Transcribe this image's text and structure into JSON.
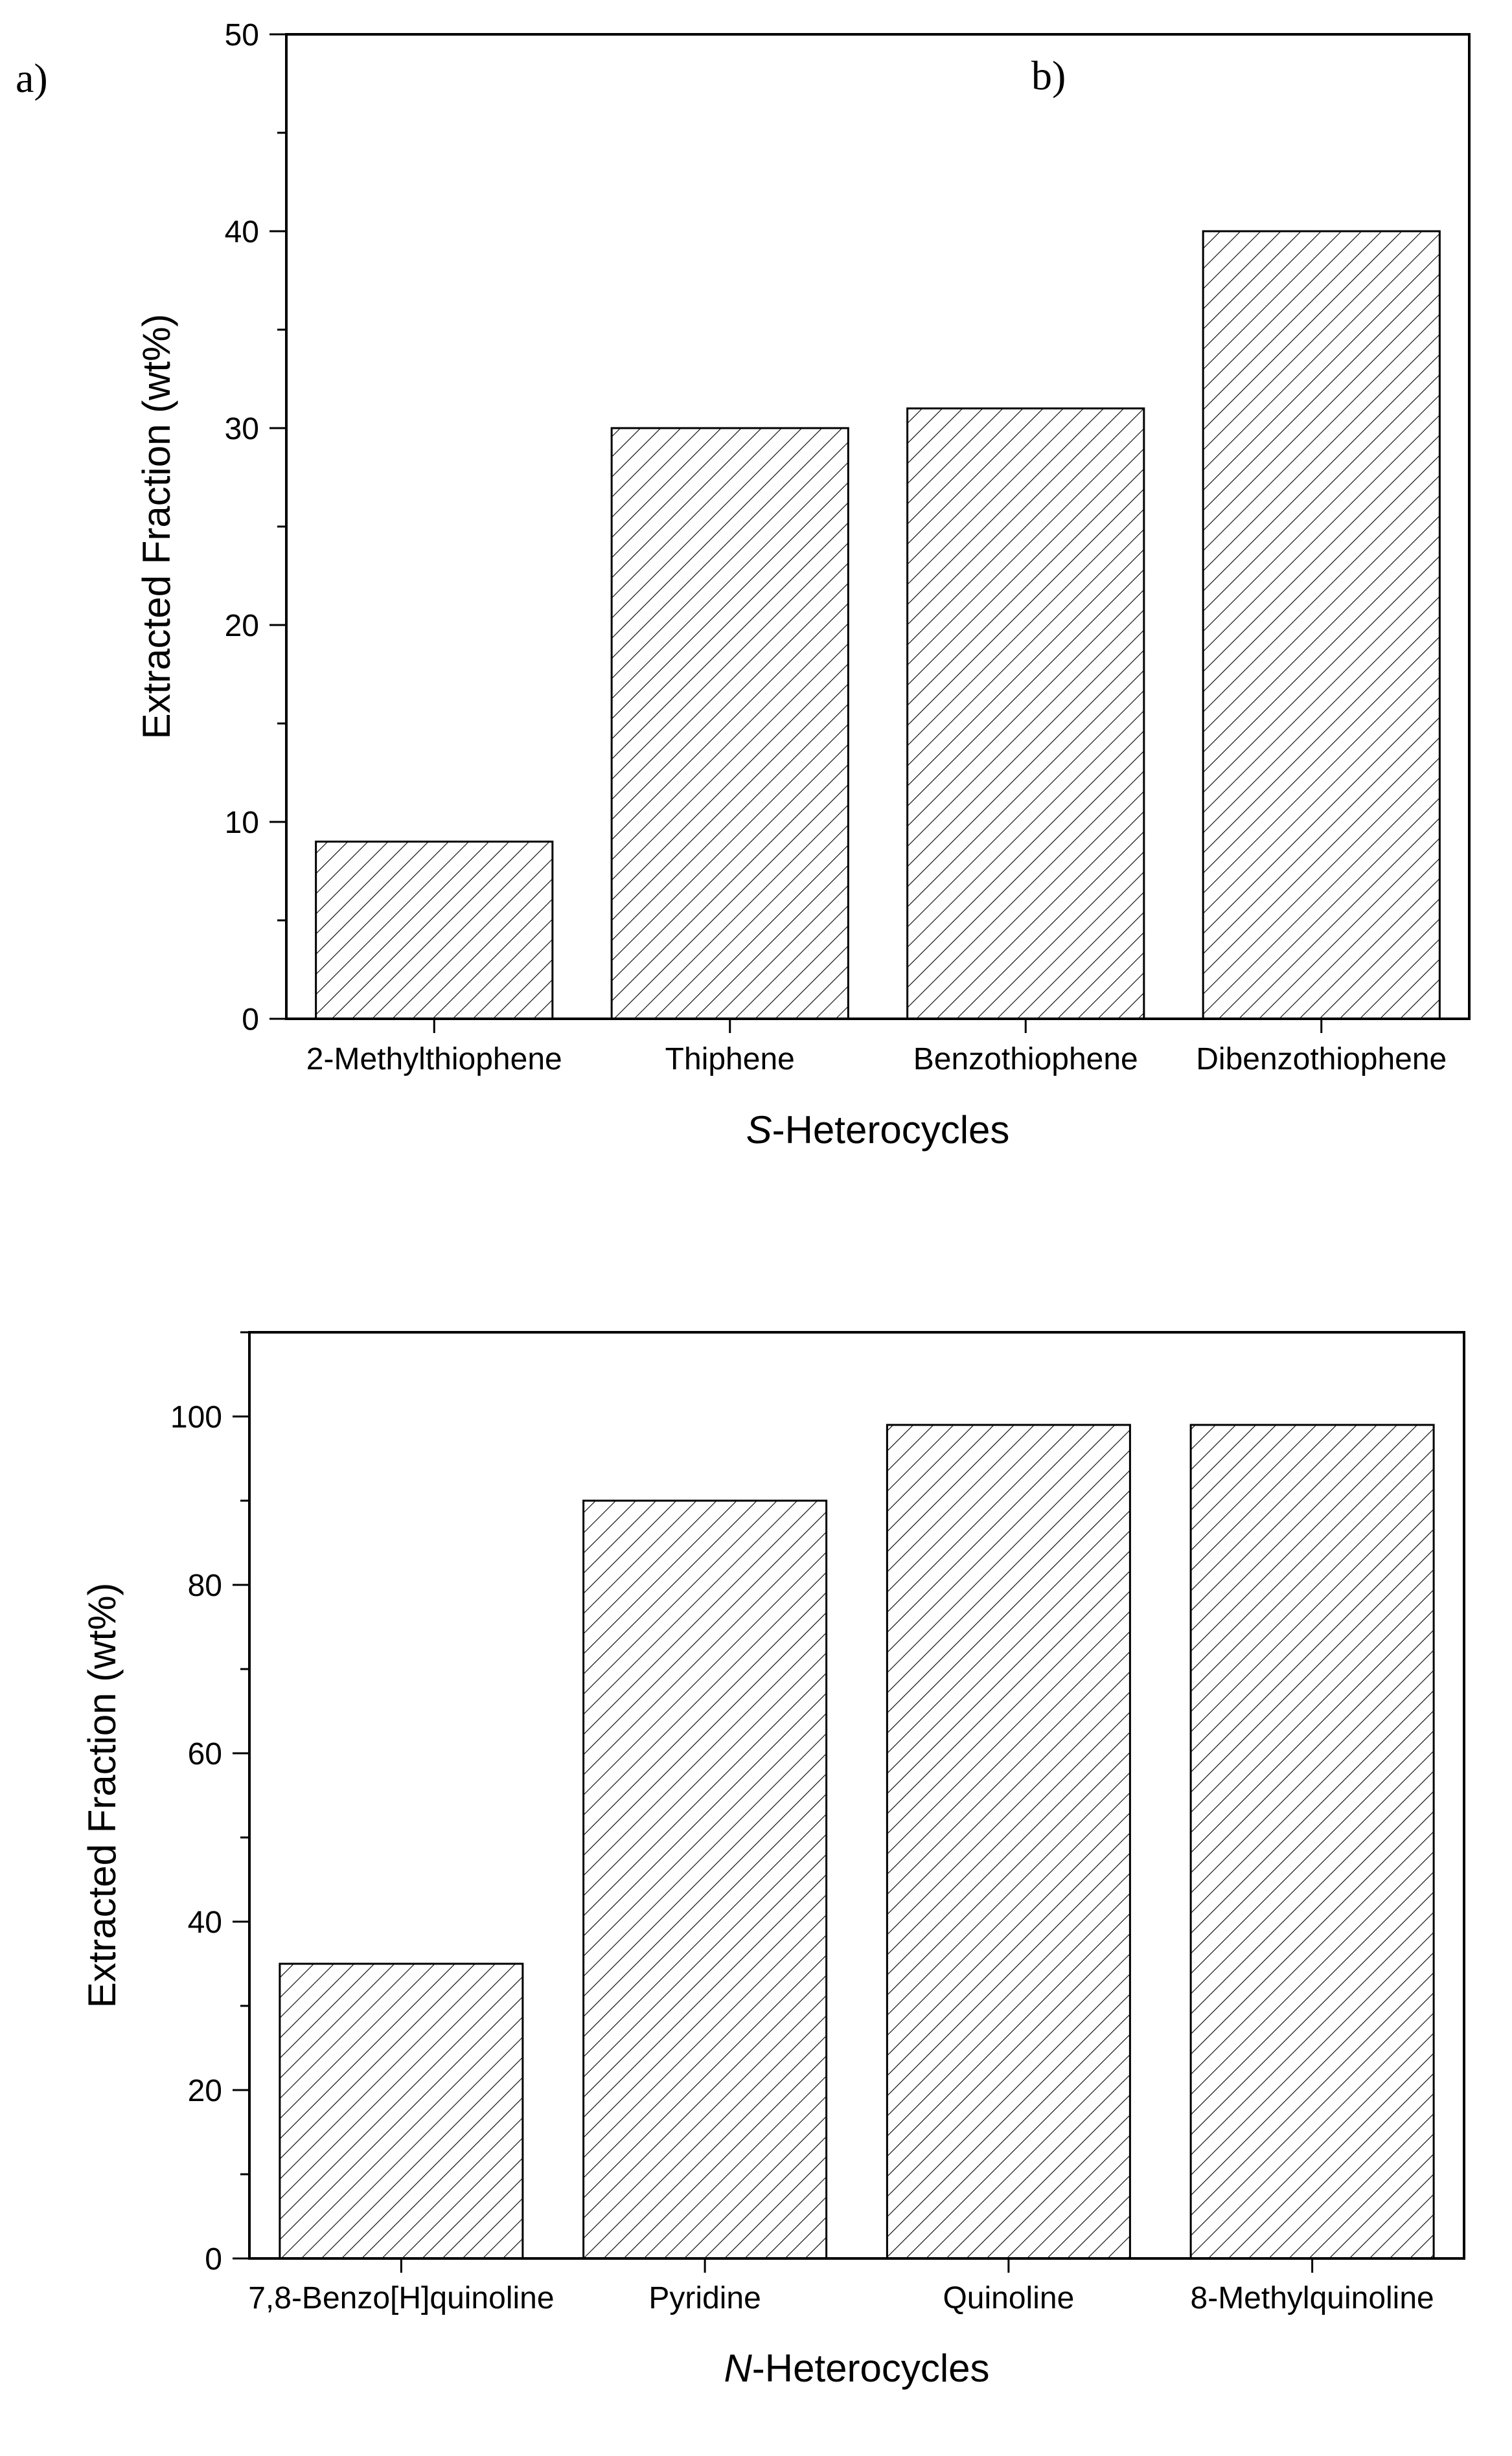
{
  "colors": {
    "ink": "#000000",
    "background": "#ffffff",
    "bar_fill": "#ffffff"
  },
  "panel_labels": {
    "a": "a)",
    "b": "b)"
  },
  "chart_data": [
    {
      "type": "bar",
      "categories": [
        "2-Methylthiophene",
        "Thiphene",
        "Benzothiophene",
        "Dibenzothiophene"
      ],
      "values": [
        9,
        30,
        31,
        40
      ],
      "title": "",
      "xlabel_italic": "S",
      "xlabel_rest": "-Heterocycles",
      "ylabel": "Extracted Fraction (wt%)",
      "ylim": [
        0,
        50
      ],
      "yticks": [
        0,
        10,
        20,
        30,
        40,
        50
      ],
      "minor_tick_step": 5,
      "grid": false,
      "bar_pattern": "diagonal-hatch"
    },
    {
      "type": "bar",
      "categories": [
        "7,8-Benzo[H]quinoline",
        "Pyridine",
        "Quinoline",
        "8-Methylquinoline"
      ],
      "values": [
        35,
        90,
        99,
        99
      ],
      "title": "",
      "xlabel_italic": "N",
      "xlabel_rest": "-Heterocycles",
      "ylabel": "Extracted Fraction (wt%)",
      "ylim": [
        0,
        110
      ],
      "yticks": [
        0,
        20,
        40,
        60,
        80,
        100
      ],
      "minor_tick_step": 10,
      "grid": false,
      "bar_pattern": "diagonal-hatch"
    }
  ]
}
